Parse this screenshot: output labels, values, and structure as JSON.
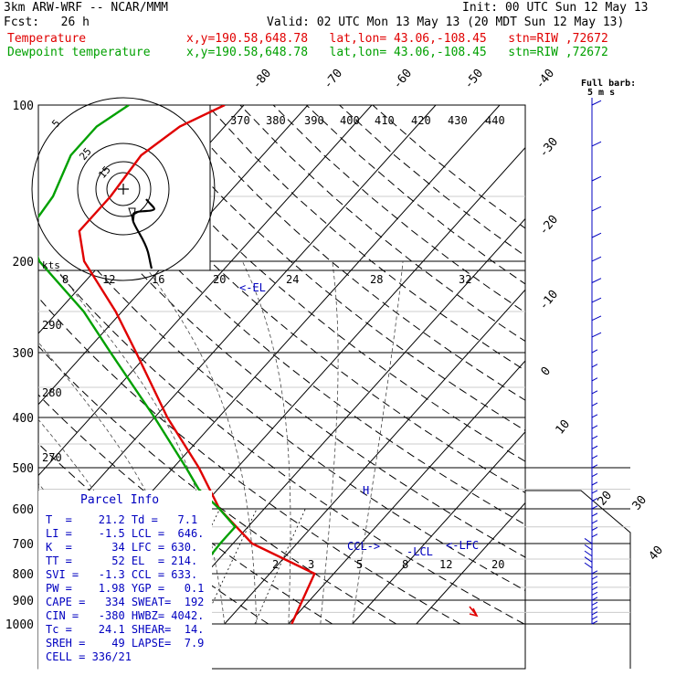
{
  "header": {
    "model": "3km ARW-WRF -- NCAR/MMM",
    "init": "Init: 00 UTC Sun 12 May 13",
    "fcst": "Fcst:   26 h",
    "valid": "Valid: 02 UTC Mon 13 May 13 (20 MDT Sun 12 May 13)",
    "temp_label": "Temperature",
    "dew_label": "Dewpoint temperature",
    "loc_info": "x,y=190.58,648.78   lat,lon= 43.06,-108.45   stn=RIW ,72672"
  },
  "chart_data": {
    "type": "line",
    "title": "",
    "pressure_levels": [
      100,
      200,
      300,
      400,
      500,
      600,
      700,
      800,
      900,
      1000
    ],
    "isotherm_labels": [
      "-80",
      "-70",
      "-60",
      "-50",
      "-40",
      "-30",
      "-20",
      "-10",
      "0",
      "10",
      "20",
      "30",
      "40"
    ],
    "dry_adiabat_labels": [
      "290",
      "280",
      "270"
    ],
    "theta_e_labels": [
      "370",
      "380",
      "390",
      "400",
      "410",
      "420",
      "430",
      "440"
    ],
    "mixing_ratio_labels": [
      "2",
      "3",
      "5",
      "8",
      "12",
      "20"
    ],
    "hodograph": {
      "unit_label": "kts",
      "ring_labels": [
        "5",
        "25",
        "15"
      ],
      "speed_labels": [
        "8",
        "12",
        "16",
        "20",
        "24",
        "28",
        "32"
      ]
    },
    "series": [
      {
        "name": "Temperature",
        "color": "#e00000",
        "points": [
          [
            1000,
            30.5
          ],
          [
            800,
            27
          ],
          [
            700,
            13
          ],
          [
            600,
            3
          ],
          [
            500,
            -6
          ],
          [
            400,
            -18
          ],
          [
            300,
            -32
          ],
          [
            250,
            -41
          ],
          [
            200,
            -53
          ],
          [
            175,
            -58
          ],
          [
            150,
            -58
          ],
          [
            125,
            -59
          ],
          [
            110,
            -57
          ],
          [
            100,
            -53
          ]
        ]
      },
      {
        "name": "Dewpoint temperature",
        "color": "#00a000",
        "points": [
          [
            800,
            8.5
          ],
          [
            700,
            8
          ],
          [
            650,
            8
          ],
          [
            600,
            3
          ],
          [
            550,
            -3
          ],
          [
            500,
            -8
          ],
          [
            400,
            -20
          ],
          [
            300,
            -36
          ],
          [
            250,
            -46
          ],
          [
            200,
            -60
          ],
          [
            175,
            -66
          ],
          [
            150,
            -67
          ],
          [
            125,
            -70
          ],
          [
            110,
            -70
          ],
          [
            100,
            -68
          ]
        ]
      }
    ],
    "annotations": {
      "el": "<-EL",
      "lcl": "-LCL",
      "lfc": "<-LFC",
      "ccl": "CCL->",
      "h": "H"
    },
    "wind_scale": {
      "title": "Full barb:",
      "value": "5 m s"
    }
  },
  "parcel_info": {
    "title": "Parcel Info",
    "rows": [
      "T  =    21.2 Td =   7.1",
      "LI =    -1.5 LCL =  646.",
      "K  =      34 LFC = 630.",
      "TT =      52 EL  = 214.",
      "SVI =   -1.3 CCL = 633.",
      "PW =    1.98 YGP =   0.1",
      "CAPE =   334 SWEAT=  192",
      "CIN =   -380 HWBZ= 4042.",
      "Tc =    24.1 SHEAR=  14.",
      "SREH =    49 LAPSE=  7.9",
      "CELL = 336/21"
    ]
  }
}
